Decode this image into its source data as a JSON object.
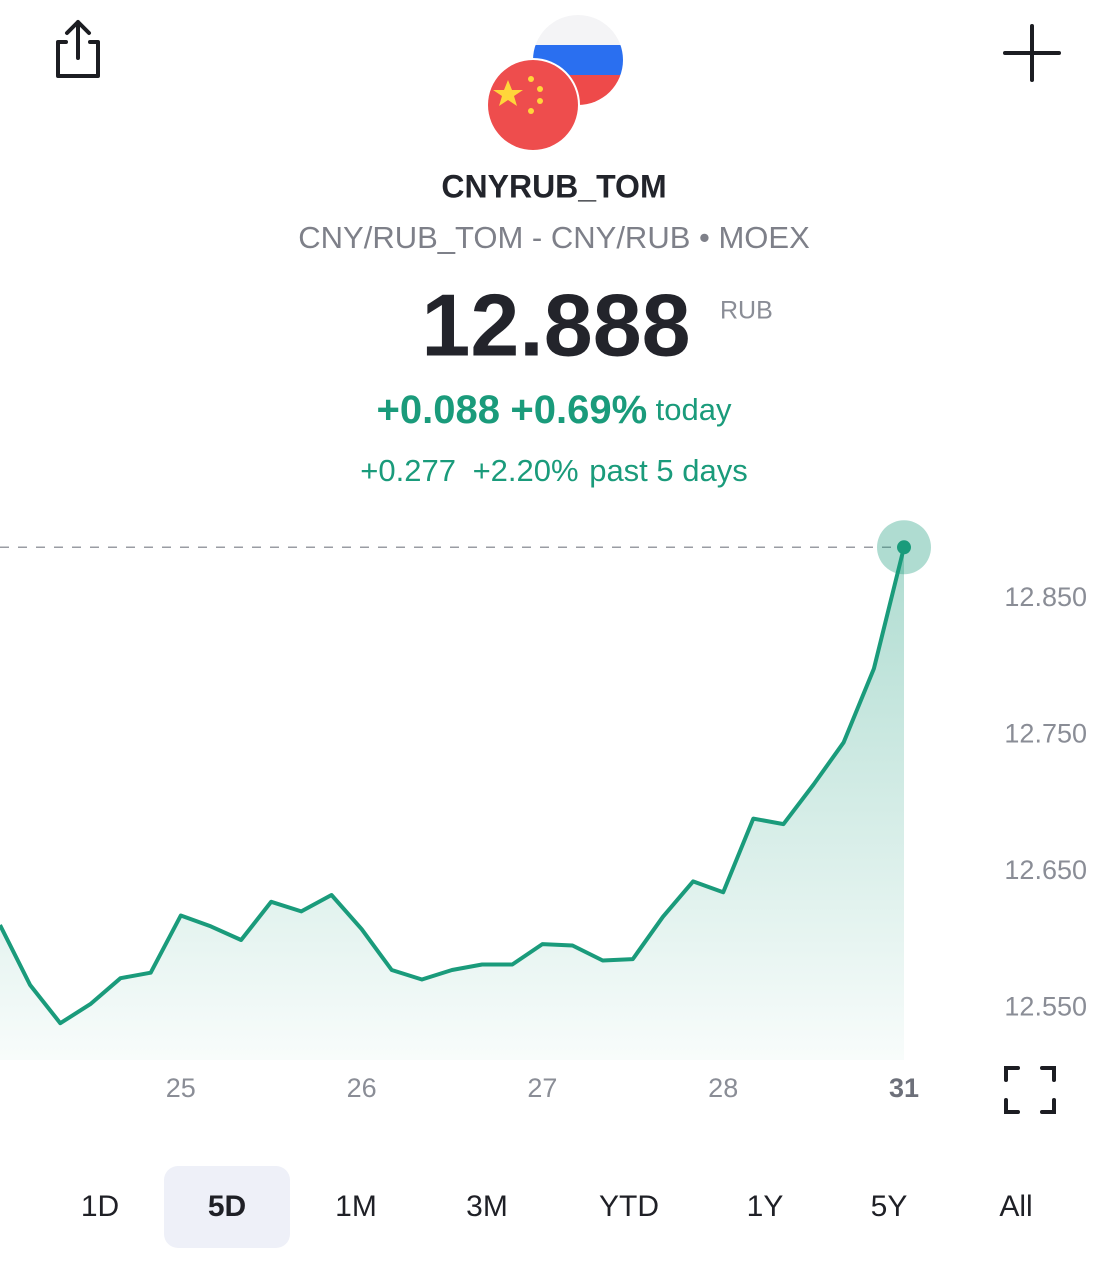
{
  "header": {
    "symbol": "CNYRUB_TOM",
    "subtitle": "CNY/RUB_TOM - CNY/RUB • MOEX",
    "price": 12.888,
    "currency": "RUB",
    "today": {
      "change": "+0.088",
      "percent": "+0.69%",
      "label": "today"
    },
    "period": {
      "change": "+0.277",
      "percent": "+2.20%",
      "label": "past 5 days"
    }
  },
  "chart_data": {
    "type": "line",
    "categories": [
      null,
      null,
      null,
      null,
      null,
      null,
      "25",
      null,
      null,
      null,
      null,
      null,
      "26",
      null,
      null,
      null,
      null,
      null,
      "27",
      null,
      null,
      null,
      null,
      null,
      "28",
      null,
      null,
      null,
      null,
      null,
      "31"
    ],
    "series": [
      {
        "name": "CNYRUB_TOM",
        "color": "#1a9b7b",
        "values": [
          12.611,
          12.567,
          12.539,
          12.553,
          12.572,
          12.576,
          12.618,
          12.61,
          12.6,
          12.628,
          12.621,
          12.633,
          12.608,
          12.578,
          12.571,
          12.578,
          12.582,
          12.582,
          12.597,
          12.596,
          12.585,
          12.586,
          12.617,
          12.643,
          12.635,
          12.689,
          12.685,
          12.714,
          12.745,
          12.799,
          12.888
        ]
      }
    ],
    "ylim": [
      12.512,
      12.908
    ],
    "yticks": [
      {
        "value": 12.55,
        "label": "12.550"
      },
      {
        "value": 12.65,
        "label": "12.650"
      },
      {
        "value": 12.75,
        "label": "12.750"
      },
      {
        "value": 12.85,
        "label": "12.850"
      }
    ],
    "grid": false
  },
  "ranges": {
    "options": [
      "1D",
      "5D",
      "1M",
      "3M",
      "YTD",
      "1Y",
      "5Y",
      "All"
    ],
    "selected": "5D"
  }
}
